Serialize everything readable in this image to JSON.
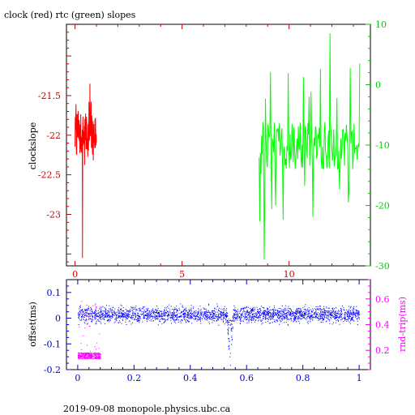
{
  "chart_data": [
    {
      "type": "line",
      "title": "clock (red) rtc (green) slopes",
      "ylabel": "clockslope",
      "xlim": [
        -0.4,
        13.8
      ],
      "ylim": [
        -23.65,
        -20.6
      ],
      "y2lim": [
        -30,
        10
      ],
      "xticks": [
        "0",
        "5",
        "10"
      ],
      "xtick_values": [
        0,
        5,
        10
      ],
      "yticks": [
        "-21.5",
        "-22",
        "-22.5",
        "-23"
      ],
      "ytick_values": [
        -21.5,
        -22,
        -22.5,
        -23
      ],
      "y2ticks": [
        "10",
        "0",
        "-10",
        "-20",
        "-30"
      ],
      "y2tick_values": [
        10,
        0,
        -10,
        -20,
        -30
      ],
      "grid": false,
      "series": [
        {
          "name": "clock",
          "axis": "left",
          "color": "#ff0000",
          "x_range": [
            0.0,
            1.0
          ],
          "center": -22.0,
          "extremes": [
            -21.35,
            -23.55
          ],
          "points": 90,
          "seed": 7
        },
        {
          "name": "rtc",
          "axis": "right",
          "color": "#00ff00",
          "x_range": [
            8.6,
            13.3
          ],
          "center": -10,
          "extremes": [
            8.5,
            -29
          ],
          "points": 160,
          "seed": 13
        }
      ]
    },
    {
      "type": "scatter",
      "ylabel": "offset(ms)",
      "y2label": "rnd-trip(ms)",
      "xlim": [
        -0.04,
        1.04
      ],
      "ylim": [
        -0.2,
        0.15
      ],
      "y2lim": [
        0.05,
        0.75
      ],
      "xticks": [
        "0",
        "0.2",
        "0.4",
        "0.6",
        "0.8",
        "1"
      ],
      "xtick_values": [
        0,
        0.2,
        0.4,
        0.6,
        0.8,
        1
      ],
      "yticks": [
        "0.1",
        "0",
        "-0.1",
        "-0.2"
      ],
      "ytick_values": [
        0.1,
        0,
        -0.1,
        -0.2
      ],
      "y2ticks": [
        "0.6",
        "0.4",
        "0.2"
      ],
      "y2tick_values": [
        0.6,
        0.4,
        0.2
      ],
      "grid": false,
      "series": [
        {
          "name": "offset",
          "axis": "left",
          "color": "#0000ff",
          "x_range": [
            0.0,
            1.0
          ],
          "center": 0.015,
          "spread": 0.03,
          "dip_at": 0.54,
          "points": 2600,
          "seed": 21
        },
        {
          "name": "rnd-trip",
          "axis": "right",
          "color": "#ff00ff",
          "x_range": [
            0.0,
            0.08
          ],
          "center": 0.16,
          "spread": 0.04,
          "points": 420,
          "seed": 33
        }
      ]
    }
  ],
  "footer": "2019-09-08  monopole.physics.ubc.ca",
  "colors": {
    "frame": "#000000",
    "left_axis_top": "#cc0000",
    "right_axis_top": "#00cc00",
    "axis_bottom": "#0000cc",
    "right_axis_bottom": "#ff00ff"
  }
}
